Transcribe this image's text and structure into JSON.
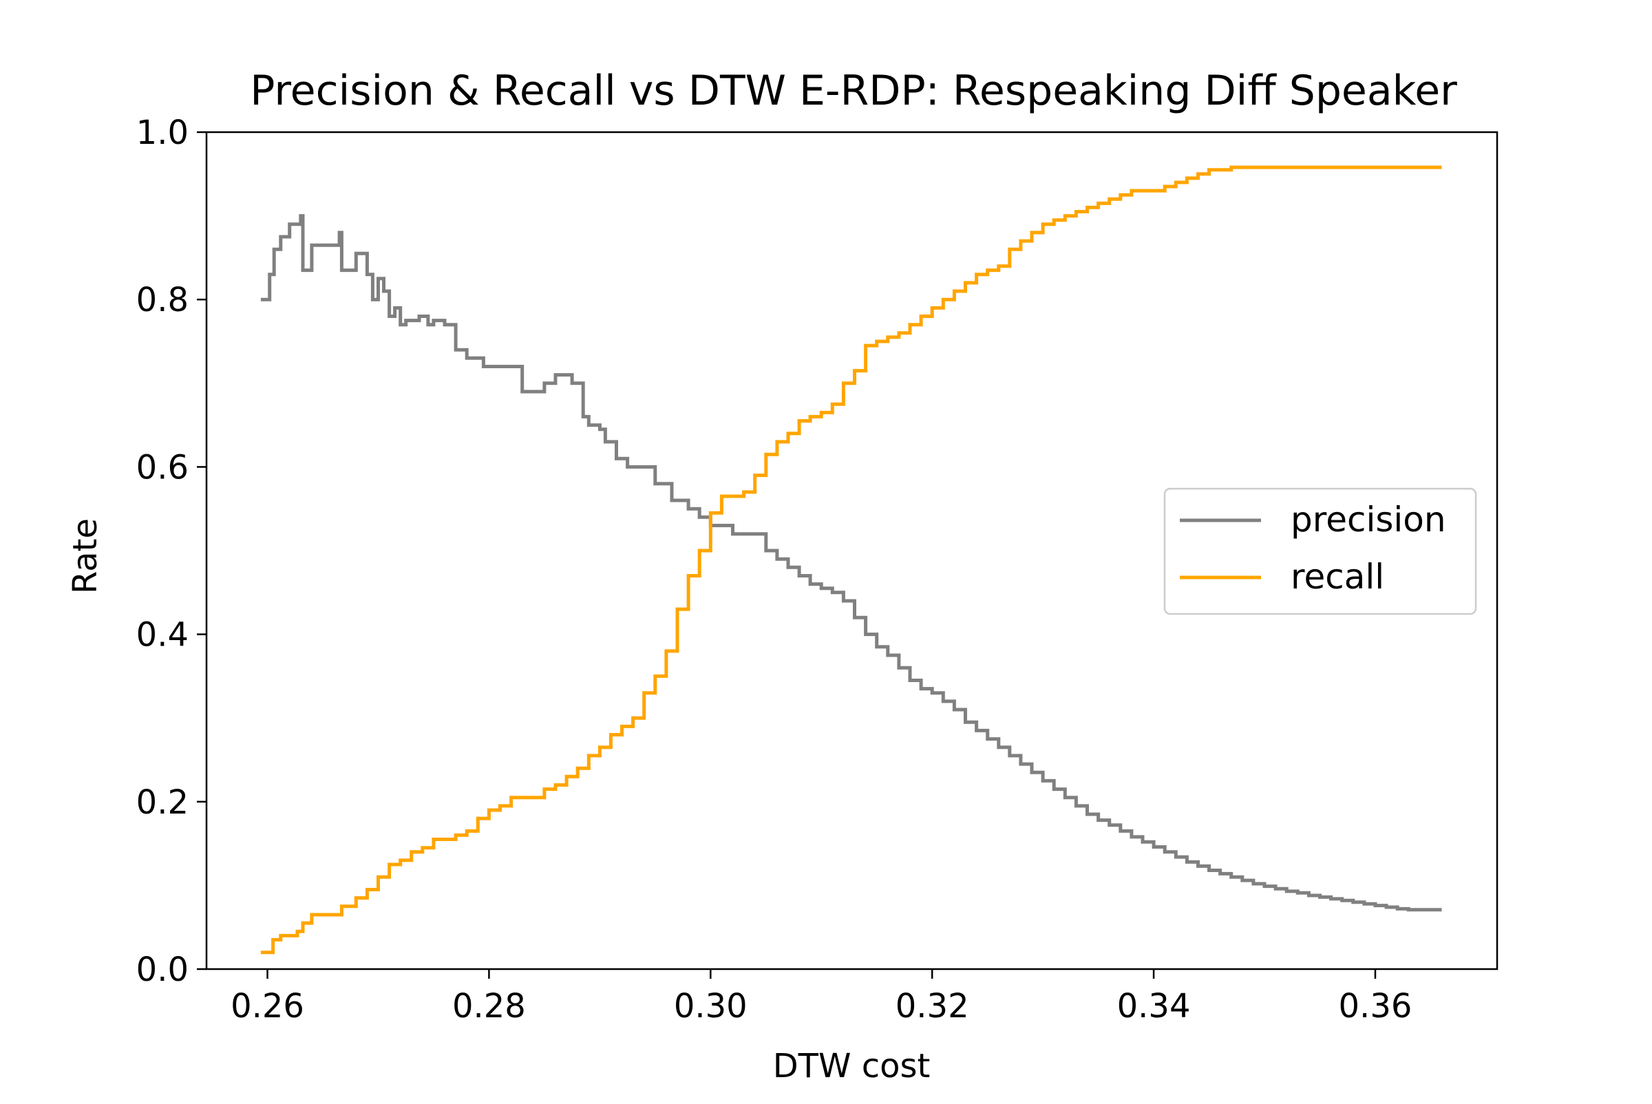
{
  "chart_data": {
    "type": "line",
    "title": "Precision & Recall vs DTW E-RDP: Respeaking Diff Speaker",
    "xlabel": "DTW cost",
    "ylabel": "Rate",
    "xlim": [
      0.2545,
      0.371
    ],
    "ylim": [
      0.0,
      1.0
    ],
    "xticks": [
      0.26,
      0.28,
      0.3,
      0.32,
      0.34,
      0.36
    ],
    "xtick_labels": [
      "0.26",
      "0.28",
      "0.30",
      "0.32",
      "0.34",
      "0.36"
    ],
    "yticks": [
      0.0,
      0.2,
      0.4,
      0.6,
      0.8,
      1.0
    ],
    "ytick_labels": [
      "0.0",
      "0.2",
      "0.4",
      "0.6",
      "0.8",
      "1.0"
    ],
    "grid": false,
    "legend_position": "center-right",
    "series": [
      {
        "name": "precision",
        "color": "#808080",
        "x": [
          0.2594,
          0.26,
          0.2602,
          0.2606,
          0.2612,
          0.2618,
          0.262,
          0.2627,
          0.263,
          0.2632,
          0.264,
          0.2657,
          0.2665,
          0.2667,
          0.268,
          0.2685,
          0.269,
          0.2695,
          0.27,
          0.2705,
          0.271,
          0.2715,
          0.272,
          0.2725,
          0.2732,
          0.2737,
          0.2745,
          0.275,
          0.276,
          0.277,
          0.278,
          0.2787,
          0.2795,
          0.28,
          0.281,
          0.282,
          0.283,
          0.284,
          0.285,
          0.286,
          0.287,
          0.2875,
          0.2885,
          0.289,
          0.2895,
          0.29,
          0.2905,
          0.2915,
          0.2925,
          0.2935,
          0.295,
          0.2965,
          0.298,
          0.299,
          0.3,
          0.301,
          0.302,
          0.303,
          0.304,
          0.305,
          0.306,
          0.307,
          0.308,
          0.309,
          0.31,
          0.311,
          0.312,
          0.313,
          0.314,
          0.315,
          0.316,
          0.317,
          0.318,
          0.319,
          0.32,
          0.321,
          0.322,
          0.323,
          0.324,
          0.325,
          0.326,
          0.327,
          0.328,
          0.329,
          0.33,
          0.331,
          0.332,
          0.333,
          0.334,
          0.335,
          0.336,
          0.337,
          0.338,
          0.339,
          0.34,
          0.341,
          0.342,
          0.343,
          0.344,
          0.345,
          0.346,
          0.347,
          0.348,
          0.349,
          0.35,
          0.351,
          0.352,
          0.353,
          0.354,
          0.355,
          0.356,
          0.357,
          0.358,
          0.359,
          0.36,
          0.361,
          0.362,
          0.363,
          0.364,
          0.365,
          0.366
        ],
        "values": [
          0.8,
          0.8,
          0.83,
          0.86,
          0.875,
          0.875,
          0.89,
          0.89,
          0.9,
          0.835,
          0.865,
          0.865,
          0.88,
          0.835,
          0.855,
          0.855,
          0.83,
          0.8,
          0.825,
          0.81,
          0.78,
          0.79,
          0.77,
          0.775,
          0.775,
          0.78,
          0.77,
          0.775,
          0.77,
          0.74,
          0.73,
          0.73,
          0.72,
          0.72,
          0.72,
          0.72,
          0.69,
          0.69,
          0.7,
          0.71,
          0.71,
          0.7,
          0.66,
          0.65,
          0.65,
          0.645,
          0.63,
          0.61,
          0.6,
          0.6,
          0.58,
          0.56,
          0.55,
          0.54,
          0.53,
          0.53,
          0.52,
          0.52,
          0.52,
          0.5,
          0.49,
          0.48,
          0.47,
          0.46,
          0.455,
          0.45,
          0.44,
          0.42,
          0.4,
          0.385,
          0.375,
          0.36,
          0.345,
          0.335,
          0.33,
          0.32,
          0.31,
          0.295,
          0.285,
          0.275,
          0.265,
          0.255,
          0.245,
          0.235,
          0.225,
          0.215,
          0.205,
          0.195,
          0.185,
          0.178,
          0.172,
          0.165,
          0.158,
          0.152,
          0.146,
          0.14,
          0.134,
          0.128,
          0.123,
          0.118,
          0.114,
          0.11,
          0.106,
          0.102,
          0.099,
          0.096,
          0.093,
          0.091,
          0.088,
          0.086,
          0.084,
          0.082,
          0.08,
          0.078,
          0.076,
          0.074,
          0.072,
          0.071,
          0.071,
          0.071,
          0.071
        ]
      },
      {
        "name": "recall",
        "color": "#ffa500",
        "x": [
          0.2594,
          0.26,
          0.2605,
          0.2612,
          0.262,
          0.2627,
          0.2632,
          0.264,
          0.266,
          0.2667,
          0.268,
          0.269,
          0.27,
          0.271,
          0.272,
          0.273,
          0.274,
          0.275,
          0.276,
          0.277,
          0.278,
          0.279,
          0.28,
          0.281,
          0.282,
          0.283,
          0.284,
          0.285,
          0.286,
          0.287,
          0.288,
          0.289,
          0.29,
          0.291,
          0.292,
          0.293,
          0.294,
          0.295,
          0.296,
          0.297,
          0.298,
          0.299,
          0.3,
          0.301,
          0.302,
          0.303,
          0.304,
          0.305,
          0.306,
          0.307,
          0.308,
          0.309,
          0.31,
          0.311,
          0.312,
          0.313,
          0.314,
          0.315,
          0.316,
          0.317,
          0.318,
          0.319,
          0.32,
          0.321,
          0.322,
          0.323,
          0.324,
          0.325,
          0.326,
          0.327,
          0.328,
          0.329,
          0.33,
          0.331,
          0.332,
          0.333,
          0.334,
          0.335,
          0.336,
          0.337,
          0.338,
          0.339,
          0.34,
          0.341,
          0.342,
          0.343,
          0.344,
          0.345,
          0.346,
          0.347,
          0.348,
          0.349,
          0.35,
          0.351,
          0.352,
          0.353,
          0.354,
          0.355,
          0.356,
          0.357,
          0.358,
          0.359,
          0.36,
          0.361,
          0.362,
          0.363,
          0.364,
          0.365,
          0.366
        ],
        "values": [
          0.02,
          0.02,
          0.035,
          0.04,
          0.04,
          0.045,
          0.055,
          0.065,
          0.065,
          0.075,
          0.085,
          0.095,
          0.11,
          0.125,
          0.13,
          0.14,
          0.145,
          0.155,
          0.155,
          0.16,
          0.165,
          0.18,
          0.19,
          0.195,
          0.205,
          0.205,
          0.205,
          0.215,
          0.22,
          0.23,
          0.24,
          0.255,
          0.265,
          0.28,
          0.29,
          0.3,
          0.33,
          0.35,
          0.38,
          0.43,
          0.47,
          0.5,
          0.545,
          0.565,
          0.565,
          0.57,
          0.59,
          0.615,
          0.63,
          0.64,
          0.655,
          0.66,
          0.665,
          0.675,
          0.7,
          0.715,
          0.745,
          0.75,
          0.755,
          0.76,
          0.77,
          0.78,
          0.79,
          0.8,
          0.81,
          0.82,
          0.83,
          0.835,
          0.84,
          0.86,
          0.87,
          0.88,
          0.89,
          0.895,
          0.9,
          0.905,
          0.91,
          0.915,
          0.92,
          0.925,
          0.93,
          0.93,
          0.93,
          0.935,
          0.94,
          0.945,
          0.95,
          0.955,
          0.955,
          0.958,
          0.958,
          0.958,
          0.958,
          0.958,
          0.958,
          0.958,
          0.958,
          0.958,
          0.958,
          0.958,
          0.958,
          0.958,
          0.958,
          0.958,
          0.958,
          0.958,
          0.958,
          0.958,
          0.958
        ]
      }
    ]
  }
}
